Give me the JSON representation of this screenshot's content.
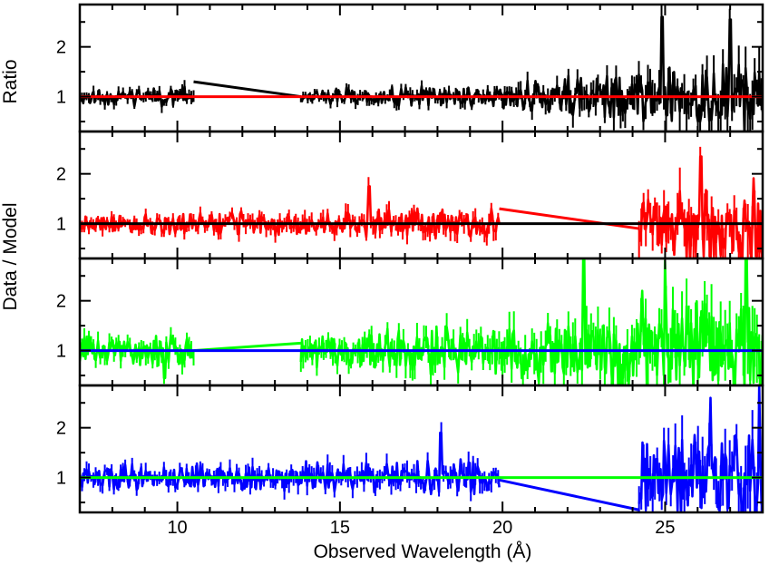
{
  "chart_data": {
    "type": "line",
    "xlabel": "Observed Wavelength (Å)",
    "ylabel": "Data / Model",
    "ylabel_extra": "Ratio",
    "xlim": [
      7,
      28
    ],
    "x_ticks": [
      10,
      15,
      20,
      25
    ],
    "y_ticks": [
      1,
      2
    ],
    "grid": false,
    "panels": [
      {
        "ylim": [
          0.3,
          2.85
        ],
        "reference_line": {
          "y": 1,
          "color": "#ff0000"
        },
        "series": {
          "color": "#000000",
          "segments": [
            {
              "x0": 7.0,
              "x1": 10.5,
              "seed": 11,
              "amp_start": 0.12,
              "amp_end": 0.14
            },
            {
              "x0": 13.8,
              "x1": 20.0,
              "seed": 12,
              "amp_start": 0.11,
              "amp_end": 0.16
            },
            {
              "x0": 20.0,
              "x1": 28.0,
              "seed": 13,
              "amp_start": 0.18,
              "amp_end": 0.55
            }
          ],
          "connectors": [
            [
              10.5,
              1.3,
              13.8,
              1.0
            ]
          ],
          "highlights": [
            [
              20.9,
              0.72
            ],
            [
              24.9,
              2.6
            ],
            [
              25.6,
              1.05
            ],
            [
              27.0,
              2.55
            ]
          ]
        }
      },
      {
        "ylim": [
          0.3,
          2.85
        ],
        "reference_line": {
          "y": 1,
          "color": "#000000"
        },
        "series": {
          "color": "#ff0000",
          "segments": [
            {
              "x0": 7.0,
              "x1": 19.9,
              "seed": 21,
              "amp_start": 0.13,
              "amp_end": 0.22
            },
            {
              "x0": 24.2,
              "x1": 28.0,
              "seed": 22,
              "amp_start": 0.45,
              "amp_end": 0.6
            }
          ],
          "connectors": [
            [
              19.9,
              1.3,
              24.2,
              0.9
            ]
          ],
          "highlights": [
            [
              15.9,
              1.75
            ],
            [
              19.0,
              0.75
            ],
            [
              26.1,
              2.35
            ],
            [
              27.8,
              0.35
            ]
          ]
        }
      },
      {
        "ylim": [
          0.3,
          2.85
        ],
        "reference_line": {
          "y": 1,
          "color": "#0000ff"
        },
        "series": {
          "color": "#00ff00",
          "segments": [
            {
              "x0": 7.0,
              "x1": 10.5,
              "seed": 31,
              "amp_start": 0.2,
              "amp_end": 0.22
            },
            {
              "x0": 13.8,
              "x1": 20.0,
              "seed": 32,
              "amp_start": 0.25,
              "amp_end": 0.35
            },
            {
              "x0": 20.0,
              "x1": 28.0,
              "seed": 33,
              "amp_start": 0.4,
              "amp_end": 0.8
            }
          ],
          "connectors": [
            [
              10.5,
              1.0,
              13.8,
              1.15
            ]
          ],
          "highlights": [
            [
              9.6,
              0.45
            ],
            [
              22.5,
              2.85
            ],
            [
              24.3,
              2.2
            ],
            [
              25.0,
              2.8
            ],
            [
              27.5,
              2.9
            ]
          ]
        }
      },
      {
        "ylim": [
          0.3,
          2.85
        ],
        "reference_line": {
          "y": 1,
          "color": "#00ff00"
        },
        "series": {
          "color": "#0000ff",
          "segments": [
            {
              "x0": 7.0,
              "x1": 19.9,
              "seed": 41,
              "amp_start": 0.17,
              "amp_end": 0.25
            },
            {
              "x0": 24.2,
              "x1": 28.0,
              "seed": 42,
              "amp_start": 0.5,
              "amp_end": 0.75
            }
          ],
          "connectors": [
            [
              19.9,
              0.95,
              24.2,
              0.35
            ]
          ],
          "highlights": [
            [
              18.1,
              1.9
            ],
            [
              26.4,
              2.6
            ],
            [
              27.9,
              2.85
            ],
            [
              27.4,
              0.3
            ]
          ]
        }
      }
    ]
  }
}
